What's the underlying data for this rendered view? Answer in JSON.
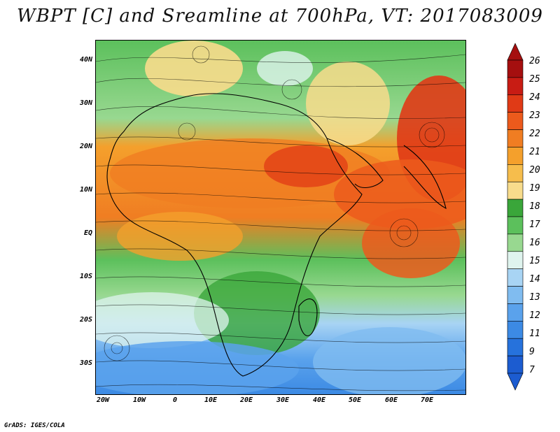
{
  "title": "WBPT [C] and Sreamline at 700hPa, VT: 2017083009",
  "credit": "GrADS: IGES/COLA",
  "y_ticks": [
    "40N",
    "30N",
    "20N",
    "10N",
    "EQ",
    "10S",
    "20S",
    "30S"
  ],
  "x_ticks": [
    "20W",
    "10W",
    "0",
    "10E",
    "20E",
    "30E",
    "40E",
    "50E",
    "60E",
    "70E"
  ],
  "legend": {
    "labels": [
      "26",
      "25",
      "24",
      "23",
      "22",
      "21",
      "20",
      "19",
      "18",
      "17",
      "16",
      "15",
      "14",
      "13",
      "12",
      "11",
      "9",
      "7"
    ],
    "colors": [
      "#a50f0f",
      "#c81c14",
      "#e03a16",
      "#ec5a1c",
      "#f07d22",
      "#f4a02c",
      "#f6bd4c",
      "#f8dc8c",
      "#3aa63a",
      "#5cc05c",
      "#98d890",
      "#dff4ee",
      "#a8d4f4",
      "#80bcf0",
      "#5aa2ec",
      "#3c8ae4",
      "#2672dc",
      "#1c5cd0"
    ]
  }
}
